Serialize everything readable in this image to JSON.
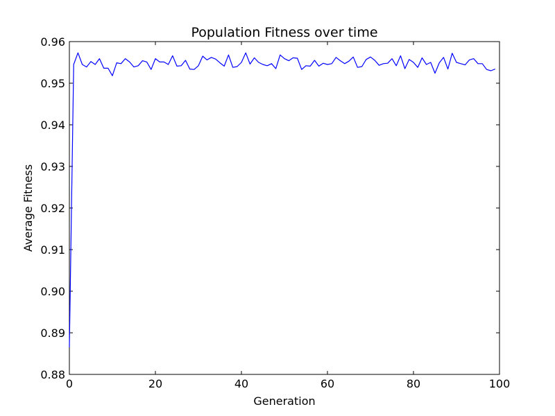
{
  "chart_data": {
    "type": "line",
    "title": "Population Fitness over time",
    "xlabel": "Generation",
    "ylabel": "Average Fitness",
    "xlim": [
      0,
      100
    ],
    "ylim": [
      0.88,
      0.96
    ],
    "xticks": [
      0,
      20,
      40,
      60,
      80,
      100
    ],
    "xtick_labels": [
      "0",
      "20",
      "40",
      "60",
      "80",
      "100"
    ],
    "yticks": [
      0.88,
      0.89,
      0.9,
      0.91,
      0.92,
      0.93,
      0.94,
      0.95,
      0.96
    ],
    "ytick_labels": [
      "0.88",
      "0.89",
      "0.90",
      "0.91",
      "0.92",
      "0.93",
      "0.94",
      "0.95",
      "0.96"
    ],
    "grid": false,
    "line_color": "#0000ff",
    "series": [
      {
        "x": [
          0,
          1,
          2,
          3,
          4,
          5,
          6,
          7,
          8,
          9,
          10,
          11,
          12,
          13,
          14,
          15,
          16,
          17,
          18,
          19,
          20,
          21,
          22,
          23,
          24,
          25,
          26,
          27,
          28,
          29,
          30,
          31,
          32,
          33,
          34,
          35,
          36,
          37,
          38,
          39,
          40,
          41,
          42,
          43,
          44,
          45,
          46,
          47,
          48,
          49,
          50,
          51,
          52,
          53,
          54,
          55,
          56,
          57,
          58,
          59,
          60,
          61,
          62,
          63,
          64,
          65,
          66,
          67,
          68,
          69,
          70,
          71,
          72,
          73,
          74,
          75,
          76,
          77,
          78,
          79,
          80,
          81,
          82,
          83,
          84,
          85,
          86,
          87,
          88,
          89,
          90,
          91,
          92,
          93,
          94,
          95,
          96,
          97,
          98,
          99
        ],
        "values": [
          0.8865,
          0.9545,
          0.9573,
          0.9545,
          0.9539,
          0.9552,
          0.9545,
          0.9559,
          0.9536,
          0.9536,
          0.9518,
          0.9549,
          0.9547,
          0.9559,
          0.9551,
          0.9539,
          0.9542,
          0.9554,
          0.9551,
          0.9533,
          0.9559,
          0.9551,
          0.9551,
          0.9545,
          0.9566,
          0.9541,
          0.9542,
          0.9555,
          0.9534,
          0.9533,
          0.9542,
          0.9565,
          0.9556,
          0.9562,
          0.9558,
          0.9549,
          0.9541,
          0.9568,
          0.9538,
          0.954,
          0.955,
          0.9573,
          0.9546,
          0.9561,
          0.955,
          0.9545,
          0.9542,
          0.9547,
          0.9535,
          0.9568,
          0.9559,
          0.9554,
          0.9561,
          0.956,
          0.9533,
          0.9542,
          0.9541,
          0.9555,
          0.9541,
          0.9548,
          0.9545,
          0.9547,
          0.9562,
          0.9554,
          0.9547,
          0.9553,
          0.9563,
          0.9538,
          0.954,
          0.9557,
          0.9563,
          0.9555,
          0.9543,
          0.9547,
          0.9548,
          0.9559,
          0.9542,
          0.9566,
          0.9535,
          0.9557,
          0.955,
          0.9538,
          0.9561,
          0.9545,
          0.955,
          0.9524,
          0.9549,
          0.9562,
          0.9534,
          0.9572,
          0.955,
          0.9547,
          0.9544,
          0.9556,
          0.9559,
          0.9547,
          0.9547,
          0.9533,
          0.953,
          0.9534
        ]
      }
    ]
  }
}
